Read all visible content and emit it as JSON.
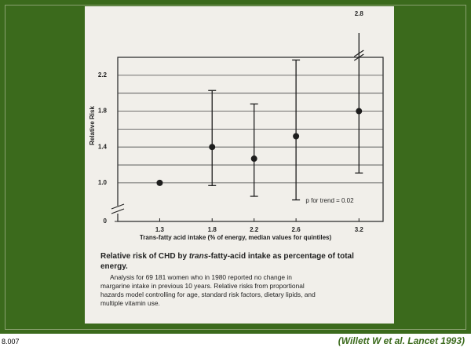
{
  "chart_data": {
    "type": "errorbar",
    "y_label": "Relative Risk",
    "x_label": "Trans-fatty acid intake (% of energy, median values for quintiles)",
    "annotation": "p for trend = 0.02",
    "x": [
      1.3,
      1.8,
      2.2,
      2.6,
      3.2
    ],
    "series": [
      {
        "color": "#1e1e1e",
        "values": [
          1.0,
          1.4,
          1.27,
          1.52,
          1.8
        ],
        "lower": [
          null,
          0.97,
          0.85,
          0.81,
          1.11
        ],
        "upper": [
          null,
          2.03,
          1.88,
          2.37,
          2.8
        ]
      }
    ],
    "xlim": [
      0.9,
      3.43
    ],
    "xticks": [
      1.3,
      1.8,
      2.2,
      2.6,
      3.2
    ],
    "ylim": [
      0.57,
      2.4
    ],
    "yticks": [
      0,
      {
        "value": 1,
        "label": "1.0"
      },
      1.4,
      1.8,
      2.2
    ],
    "minor_yticks": [
      1.2,
      1.6,
      2.0
    ],
    "grid": true,
    "y_break": true
  },
  "caption": {
    "title_parts": [
      "Relative risk of CHD by ",
      "trans",
      "-fatty-acid intake as percentage of total energy."
    ],
    "body_lines": [
      "Analysis for 69 181 women who in 1980 reported no change in",
      "margarine intake in previous 10 years. Relative risks from proportional",
      "hazards model controlling for age, standard risk factors, dietary lipids, and",
      "multiple vitamin use."
    ]
  },
  "slide": {
    "number": "8.007",
    "citation": "(Willett  W et al. Lancet 1993)"
  }
}
